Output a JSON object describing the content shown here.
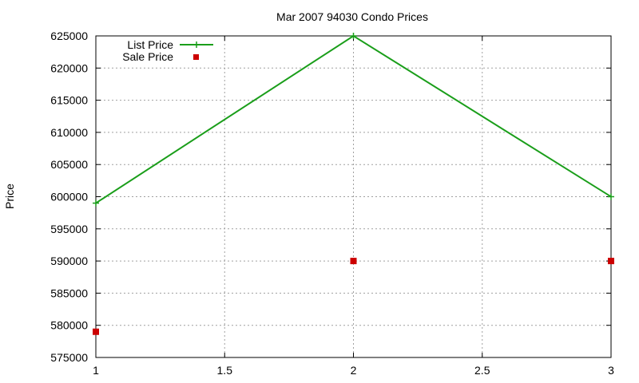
{
  "chart_data": {
    "type": "line",
    "title": "Mar 2007 94030 Condo Prices",
    "xlabel": "",
    "ylabel": "Price",
    "xlim": [
      1,
      3
    ],
    "ylim": [
      575000,
      625000
    ],
    "x_ticks": [
      1,
      1.5,
      2,
      2.5,
      3
    ],
    "x_tick_labels": [
      "1",
      "1.5",
      "2",
      "2.5",
      "3"
    ],
    "y_ticks": [
      575000,
      580000,
      585000,
      590000,
      595000,
      600000,
      605000,
      610000,
      615000,
      620000,
      625000
    ],
    "y_tick_labels": [
      "575000",
      "580000",
      "585000",
      "590000",
      "595000",
      "600000",
      "605000",
      "610000",
      "615000",
      "620000",
      "625000"
    ],
    "grid": true,
    "legend_position": "top-left",
    "series": [
      {
        "name": "List Price",
        "style": "line-points",
        "marker": "plus",
        "color": "#1a9e1a",
        "x": [
          1,
          2,
          3
        ],
        "y": [
          599000,
          625000,
          600000
        ]
      },
      {
        "name": "Sale Price",
        "style": "points",
        "marker": "square",
        "color": "#cc0000",
        "x": [
          1,
          2,
          3
        ],
        "y": [
          579000,
          590000,
          590000
        ]
      }
    ]
  }
}
